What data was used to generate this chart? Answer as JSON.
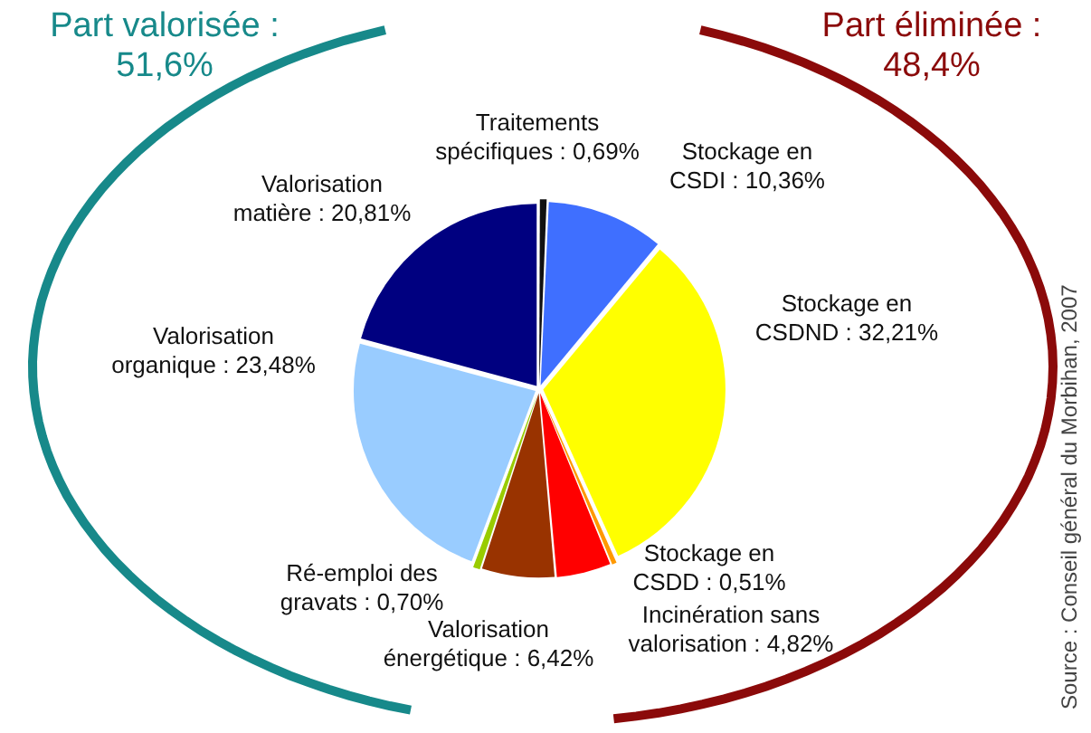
{
  "chart_data": {
    "type": "pie",
    "categories": [
      "Traitements spécifiques",
      "Stockage en CSDI",
      "Stockage en CSDND",
      "Stockage en CSDD",
      "Incinération sans valorisation",
      "Valorisation énergétique",
      "Ré-emploi des gravats",
      "Valorisation organique",
      "Valorisation matière"
    ],
    "values": [
      0.69,
      10.36,
      32.21,
      0.51,
      4.82,
      6.42,
      0.7,
      23.48,
      20.81
    ],
    "value_labels": [
      "0,69%",
      "10,36%",
      "32,21%",
      "0,51%",
      "4,82%",
      "6,42%",
      "0,70%",
      "23,48%",
      "20,81%"
    ],
    "colors": [
      "#111111",
      "#3f6fff",
      "#ffff00",
      "#ff9900",
      "#ff0000",
      "#993300",
      "#99cc00",
      "#99ccff",
      "#000080"
    ],
    "annotations": [
      "Part valorisée : 51,6%",
      "Part éliminée : 48,4%",
      "Source : Conseil général du Morbihan, 2007"
    ],
    "legend": false
  }
}
